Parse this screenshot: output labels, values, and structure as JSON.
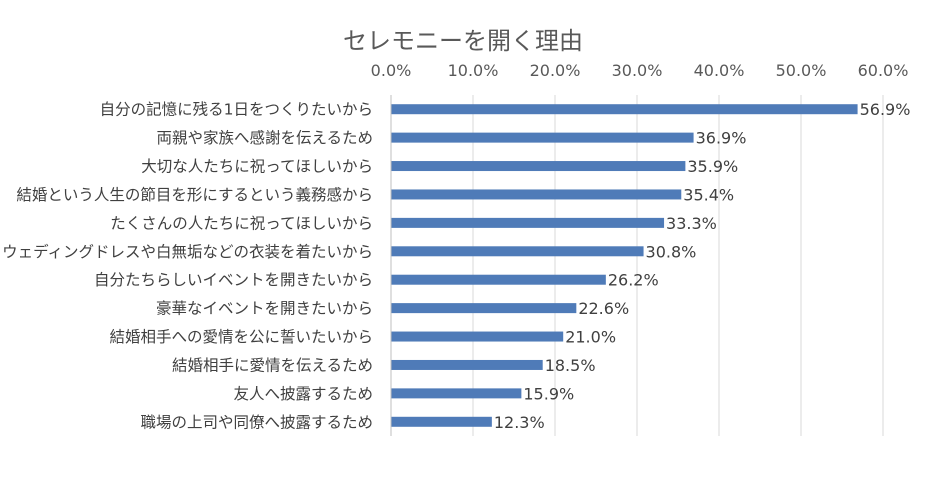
{
  "chart_data": {
    "type": "bar",
    "orientation": "horizontal",
    "title": "セレモニーを開く理由",
    "xlim": [
      0,
      60
    ],
    "x_tick_labels": [
      "0.0%",
      "10.0%",
      "20.0%",
      "30.0%",
      "40.0%",
      "50.0%",
      "60.0%"
    ],
    "x_ticks": [
      0,
      10,
      20,
      30,
      40,
      50,
      60
    ],
    "x_axis_position": "top",
    "grid": true,
    "legend": "none",
    "bar_color": "#4F7BB8",
    "categories": [
      "自分の記憶に残る1日をつくりたいから",
      "両親や家族へ感謝を伝えるため",
      "大切な人たちに祝ってほしいから",
      "結婚という人生の節目を形にするという義務感から",
      "たくさんの人たちに祝ってほしいから",
      "ウェディングドレスや白無垢などの衣装を着たいから",
      "自分たちらしいイベントを開きたいから",
      "豪華なイベントを開きたいから",
      "結婚相手への愛情を公に誓いたいから",
      "結婚相手に愛情を伝えるため",
      "友人へ披露するため",
      "職場の上司や同僚へ披露するため"
    ],
    "values": [
      56.9,
      36.9,
      35.9,
      35.4,
      33.3,
      30.8,
      26.2,
      22.6,
      21.0,
      18.5,
      15.9,
      12.3
    ],
    "data_labels": [
      "56.9%",
      "36.9%",
      "35.9%",
      "35.4%",
      "33.3%",
      "30.8%",
      "26.2%",
      "22.6%",
      "21.0%",
      "18.5%",
      "15.9%",
      "12.3%"
    ]
  }
}
